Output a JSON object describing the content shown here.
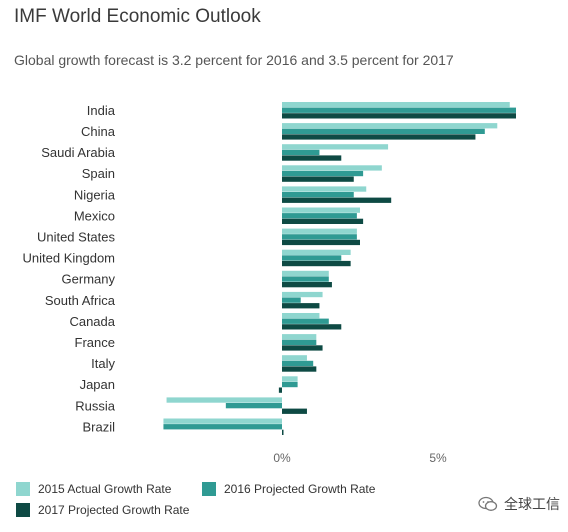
{
  "header": {
    "title": "IMF World Economic Outlook",
    "subtitle": "Global growth forecast is 3.2 percent for 2016 and 3.5 percent for 2017"
  },
  "colors": {
    "series_2015": "#8fd6cf",
    "series_2016": "#2f9a93",
    "series_2017": "#0e4a44",
    "axis_line": "#cccccc"
  },
  "chart_data": {
    "type": "bar",
    "orientation": "horizontal",
    "title": "IMF World Economic Outlook",
    "subtitle": "Global growth forecast is 3.2 percent for 2016 and 3.5 percent for 2017",
    "categories": [
      "India",
      "China",
      "Saudi Arabia",
      "Spain",
      "Nigeria",
      "Mexico",
      "United States",
      "United Kingdom",
      "Germany",
      "South Africa",
      "Canada",
      "France",
      "Italy",
      "Japan",
      "Russia",
      "Brazil"
    ],
    "series": [
      {
        "name": "2015 Actual Growth Rate",
        "values": [
          7.3,
          6.9,
          3.4,
          3.2,
          2.7,
          2.5,
          2.4,
          2.2,
          1.5,
          1.3,
          1.2,
          1.1,
          0.8,
          0.5,
          -3.7,
          -3.8
        ]
      },
      {
        "name": "2016 Projected Growth Rate",
        "values": [
          7.5,
          6.5,
          1.2,
          2.6,
          2.3,
          2.4,
          2.4,
          1.9,
          1.5,
          0.6,
          1.5,
          1.1,
          1.0,
          0.5,
          -1.8,
          -3.8
        ]
      },
      {
        "name": "2017 Projected Growth Rate",
        "values": [
          7.5,
          6.2,
          1.9,
          2.3,
          3.5,
          2.6,
          2.5,
          2.2,
          1.6,
          1.2,
          1.9,
          1.3,
          1.1,
          -0.1,
          0.8,
          0.0
        ]
      }
    ],
    "x_ticks": [
      "0%",
      "5%"
    ],
    "x_tick_values": [
      0,
      5
    ],
    "xlim": [
      -4.0,
      7.8
    ],
    "legend_position": "bottom",
    "grid": false
  },
  "watermark": {
    "text": "全球工信"
  }
}
